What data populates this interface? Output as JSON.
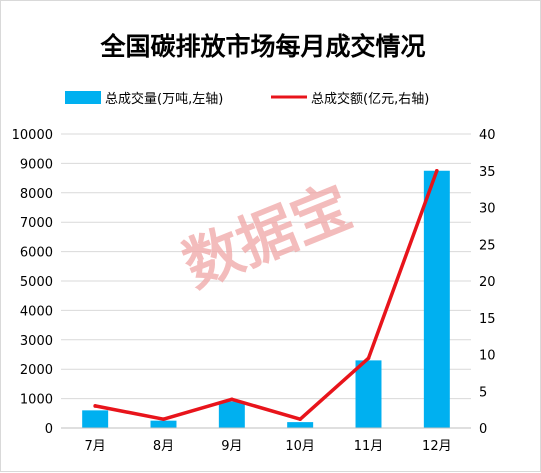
{
  "chart_data": {
    "type": "bar",
    "title": "全国碳排放市场每月成交情况",
    "categories": [
      "7月",
      "8月",
      "9月",
      "10月",
      "11月",
      "12月"
    ],
    "series": [
      {
        "name": "总成交量(万吨,左轴)",
        "type": "bar",
        "axis": "left",
        "color": "#00b0f0",
        "values": [
          600,
          250,
          900,
          200,
          2300,
          8750
        ]
      },
      {
        "name": "总成交额(亿元,右轴)",
        "type": "line",
        "axis": "right",
        "color": "#e8141b",
        "values": [
          3.0,
          1.2,
          3.9,
          1.2,
          9.5,
          35.0
        ]
      }
    ],
    "y_left": {
      "min": 0,
      "max": 10000,
      "ticks": [
        0,
        1000,
        2000,
        3000,
        4000,
        5000,
        6000,
        7000,
        8000,
        9000,
        10000
      ]
    },
    "y_right": {
      "min": 0,
      "max": 40,
      "ticks": [
        0,
        5,
        10,
        15,
        20,
        25,
        30,
        35,
        40
      ]
    },
    "grid": true,
    "legend_position": "top"
  },
  "watermark": "数据宝"
}
